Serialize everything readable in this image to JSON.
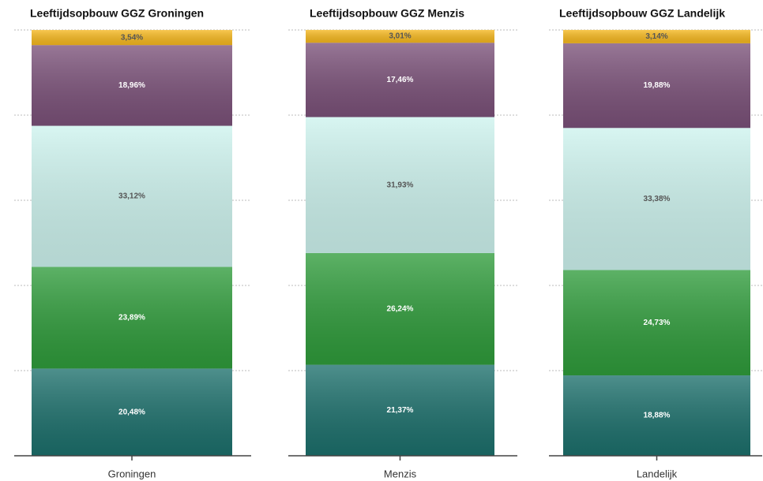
{
  "chart_data": [
    {
      "type": "bar",
      "stacked": true,
      "title": "Leeftijdsopbouw GGZ Groningen",
      "categories": [
        "Groningen"
      ],
      "series": [
        {
          "color": "#1c706c",
          "values": [
            20.48
          ],
          "value_labels": [
            "20,48%"
          ]
        },
        {
          "color": "#2f9c3b",
          "values": [
            23.89
          ],
          "value_labels": [
            "23,89%"
          ]
        },
        {
          "color": "#cdf3ee",
          "values": [
            33.12
          ],
          "value_labels": [
            "33,12%"
          ]
        },
        {
          "color": "#7b5179",
          "values": [
            18.96
          ],
          "value_labels": [
            "18,96%"
          ]
        },
        {
          "color": "#f6b81e",
          "values": [
            3.54
          ],
          "value_labels": [
            "3,54%"
          ]
        }
      ],
      "ylim": [
        0,
        100
      ],
      "yticks": [
        0,
        20,
        40,
        60,
        80,
        100
      ],
      "grid": true
    },
    {
      "type": "bar",
      "stacked": true,
      "title": "Leeftijdsopbouw GGZ Menzis",
      "categories": [
        "Menzis"
      ],
      "series": [
        {
          "color": "#1c706c",
          "values": [
            21.37
          ],
          "value_labels": [
            "21,37%"
          ]
        },
        {
          "color": "#2f9c3b",
          "values": [
            26.24
          ],
          "value_labels": [
            "26,24%"
          ]
        },
        {
          "color": "#cdf3ee",
          "values": [
            31.93
          ],
          "value_labels": [
            "31,93%"
          ]
        },
        {
          "color": "#7b5179",
          "values": [
            17.46
          ],
          "value_labels": [
            "17,46%"
          ]
        },
        {
          "color": "#f6b81e",
          "values": [
            3.01
          ],
          "value_labels": [
            "3,01%"
          ]
        }
      ],
      "ylim": [
        0,
        100
      ],
      "yticks": [
        0,
        20,
        40,
        60,
        80,
        100
      ],
      "grid": true
    },
    {
      "type": "bar",
      "stacked": true,
      "title": "Leeftijdsopbouw GGZ Landelijk",
      "categories": [
        "Landelijk"
      ],
      "series": [
        {
          "color": "#1c706c",
          "values": [
            18.88
          ],
          "value_labels": [
            "18,88%"
          ]
        },
        {
          "color": "#2f9c3b",
          "values": [
            24.73
          ],
          "value_labels": [
            "24,73%"
          ]
        },
        {
          "color": "#cdf3ee",
          "values": [
            33.38
          ],
          "value_labels": [
            "33,38%"
          ]
        },
        {
          "color": "#7b5179",
          "values": [
            19.88
          ],
          "value_labels": [
            "19,88%"
          ]
        },
        {
          "color": "#f6b81e",
          "values": [
            3.14
          ],
          "value_labels": [
            "3,14%"
          ]
        }
      ],
      "ylim": [
        0,
        100
      ],
      "yticks": [
        0,
        20,
        40,
        60,
        80,
        100
      ],
      "grid": true
    }
  ]
}
